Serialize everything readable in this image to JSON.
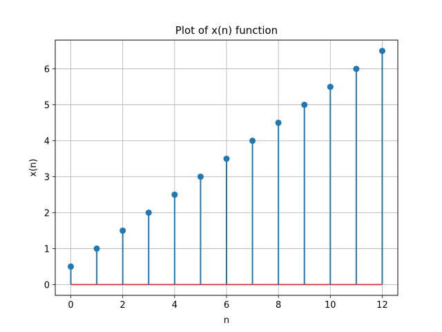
{
  "chart_data": {
    "type": "stem",
    "title": "Plot of x(n) function",
    "xlabel": "n",
    "ylabel": "x(n)",
    "x": [
      0,
      1,
      2,
      3,
      4,
      5,
      6,
      7,
      8,
      9,
      10,
      11,
      12
    ],
    "y": [
      0.5,
      1.0,
      1.5,
      2.0,
      2.5,
      3.0,
      3.5,
      4.0,
      4.5,
      5.0,
      5.5,
      6.0,
      6.5
    ],
    "xlim": [
      -0.6,
      12.6
    ],
    "ylim": [
      -0.3,
      6.8
    ],
    "xticks": [
      0,
      2,
      4,
      6,
      8,
      10,
      12
    ],
    "yticks": [
      0,
      1,
      2,
      3,
      4,
      5,
      6
    ],
    "grid": true,
    "baseline": 0,
    "colors": {
      "stem": "#1f77b4",
      "baseline": "#d62728",
      "grid": "#b0b0b0"
    }
  }
}
